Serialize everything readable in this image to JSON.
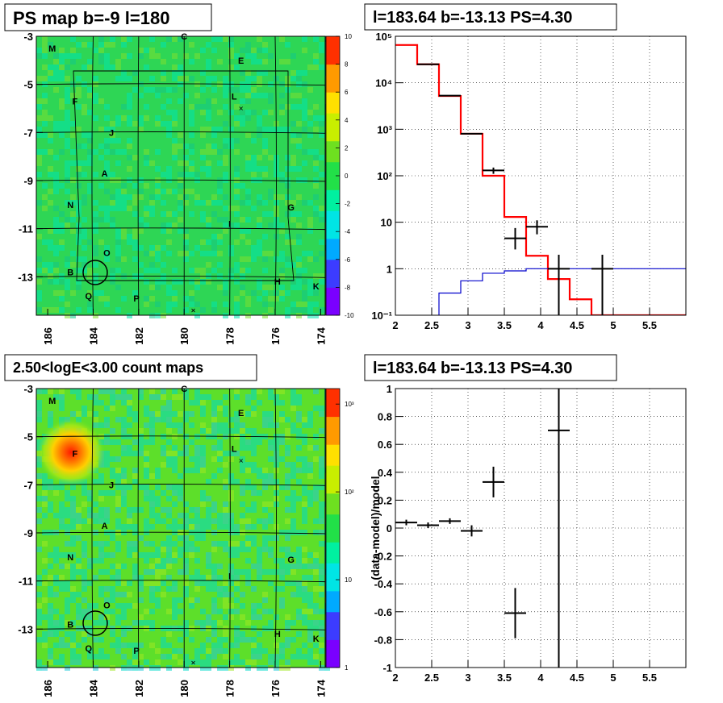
{
  "panels": {
    "ps_map": {
      "title": "PS map b=-9 l=180",
      "x_ticks": [
        "186",
        "184",
        "182",
        "180",
        "178",
        "176",
        "174"
      ],
      "y_ticks": [
        "-3",
        "-5",
        "-7",
        "-9",
        "-11",
        "-13"
      ],
      "colorbar_ticks": [
        "10",
        "8",
        "6",
        "4",
        "2",
        "0",
        "-2",
        "-4",
        "-6",
        "-8",
        "-10"
      ],
      "source_labels": [
        "M",
        "C",
        "E",
        "F",
        "L",
        "J",
        "A",
        "N",
        "G",
        "I",
        "O",
        "B",
        "H",
        "K",
        "Q",
        "P"
      ]
    },
    "count_map": {
      "title": "2.50<logE<3.00 count maps",
      "x_ticks": [
        "186",
        "184",
        "182",
        "180",
        "178",
        "176",
        "174"
      ],
      "y_ticks": [
        "-3",
        "-5",
        "-7",
        "-9",
        "-11",
        "-13"
      ],
      "colorbar_ticks": [
        "10³",
        "10²",
        "10",
        "1"
      ],
      "source_labels": [
        "M",
        "C",
        "E",
        "F",
        "L",
        "J",
        "A",
        "N",
        "G",
        "I",
        "O",
        "B",
        "H",
        "K",
        "Q",
        "P"
      ]
    },
    "spectrum": {
      "title": "l=183.64 b=-13.13 PS=4.30",
      "x_ticks": [
        "2",
        "2.5",
        "3",
        "3.5",
        "4",
        "4.5",
        "5",
        "5.5"
      ],
      "y_ticks": [
        "10⁵",
        "10⁴",
        "10³",
        "10²",
        "10",
        "1",
        "10⁻¹"
      ]
    },
    "residual": {
      "title": "l=183.64 b=-13.13 PS=4.30",
      "ylabel": "(data-model)/model",
      "x_ticks": [
        "2",
        "2.5",
        "3",
        "3.5",
        "4",
        "4.5",
        "5",
        "5.5"
      ],
      "y_ticks": [
        "1",
        "0.8",
        "0.6",
        "0.4",
        "0.2",
        "0",
        "-0.2",
        "-0.4",
        "-0.6",
        "-0.8",
        "-1"
      ]
    }
  },
  "chart_data": [
    {
      "type": "heatmap",
      "title": "PS map b=-9 l=180",
      "x_range": [
        186.5,
        173.8
      ],
      "y_range": [
        -14.6,
        -3
      ],
      "z_range": [
        -10,
        10
      ],
      "colormap": [
        "#7a00ff",
        "#3c3cff",
        "#00aaff",
        "#00e5e5",
        "#00f0a0",
        "#22e048",
        "#6ee020",
        "#c8ee00",
        "#ffe000",
        "#ff9a00",
        "#ff3000"
      ],
      "circle": {
        "l": 183.64,
        "b": -13.13
      },
      "crosses": [
        {
          "l": 177.5,
          "b": -6.0
        },
        {
          "l": 179.6,
          "b": -14.4
        }
      ],
      "sources": [
        {
          "name": "M",
          "l": 185.8,
          "b": -3.5
        },
        {
          "name": "C",
          "l": 180.0,
          "b": -3.0
        },
        {
          "name": "E",
          "l": 177.5,
          "b": -4.0
        },
        {
          "name": "F",
          "l": 184.8,
          "b": -5.7
        },
        {
          "name": "L",
          "l": 177.8,
          "b": -5.5
        },
        {
          "name": "J",
          "l": 183.2,
          "b": -7.0
        },
        {
          "name": "A",
          "l": 183.5,
          "b": -8.7
        },
        {
          "name": "N",
          "l": 185.0,
          "b": -10.0
        },
        {
          "name": "G",
          "l": 175.3,
          "b": -10.1
        },
        {
          "name": "I",
          "l": 178.0,
          "b": -10.8
        },
        {
          "name": "O",
          "l": 183.4,
          "b": -12.0
        },
        {
          "name": "B",
          "l": 185.0,
          "b": -12.8
        },
        {
          "name": "H",
          "l": 175.9,
          "b": -13.2
        },
        {
          "name": "K",
          "l": 174.2,
          "b": -13.4
        },
        {
          "name": "Q",
          "l": 184.2,
          "b": -13.8
        },
        {
          "name": "P",
          "l": 182.1,
          "b": -13.9
        }
      ]
    },
    {
      "type": "heatmap",
      "title": "2.50<logE<3.00 count maps",
      "x_range": [
        186.5,
        173.8
      ],
      "y_range": [
        -14.6,
        -3
      ],
      "z_range": [
        1,
        1500
      ],
      "z_scale": "log",
      "colormap": [
        "#7a00ff",
        "#3c3cff",
        "#00aaff",
        "#00e5e5",
        "#00f0a0",
        "#22e048",
        "#6ee020",
        "#c8ee00",
        "#ffe000",
        "#ff9a00",
        "#ff3000"
      ],
      "hotspot": {
        "l": 184.8,
        "b": -5.7
      },
      "circle": {
        "l": 183.64,
        "b": -13.13
      },
      "crosses": [
        {
          "l": 177.5,
          "b": -6.0
        },
        {
          "l": 179.6,
          "b": -14.4
        }
      ]
    },
    {
      "type": "line",
      "title": "l=183.64 b=-13.13 PS=4.30",
      "xlim": [
        2,
        6
      ],
      "ylim": [
        0.1,
        100000
      ],
      "y_scale": "log",
      "grid": true,
      "series": [
        {
          "color": "#ff0000",
          "style": "step",
          "edges": [
            2,
            2.3,
            2.6,
            2.9,
            3.2,
            3.5,
            3.8,
            4.1,
            4.4,
            4.7,
            5.0,
            6.0
          ],
          "values": [
            65000,
            25000,
            5200,
            800,
            100,
            13,
            1.9,
            0.6,
            0.22,
            0.1,
            0.1
          ]
        },
        {
          "color": "#0000cc",
          "style": "step",
          "edges": [
            2.6,
            2.9,
            3.2,
            3.5,
            3.8,
            4.1,
            4.4,
            4.7,
            5.0,
            6.0
          ],
          "values": [
            0.3,
            0.55,
            0.8,
            0.9,
            1.0,
            1.0,
            1.0,
            1.0,
            1.0
          ]
        },
        {
          "color": "#000000",
          "style": "errorbars",
          "points": [
            {
              "x": 2.45,
              "y": 25000,
              "xe": 0.15,
              "ylo": 25000,
              "yhi": 25000
            },
            {
              "x": 2.75,
              "y": 5300,
              "xe": 0.15,
              "ylo": 5300,
              "yhi": 5300
            },
            {
              "x": 3.05,
              "y": 800,
              "xe": 0.15,
              "ylo": 800,
              "yhi": 800
            },
            {
              "x": 3.35,
              "y": 130,
              "xe": 0.15,
              "ylo": 110,
              "yhi": 150
            },
            {
              "x": 3.65,
              "y": 4.5,
              "xe": 0.15,
              "ylo": 2.6,
              "yhi": 7.5
            },
            {
              "x": 3.95,
              "y": 8,
              "xe": 0.15,
              "ylo": 5.5,
              "yhi": 11
            },
            {
              "x": 4.25,
              "y": 1.0,
              "xe": 0.15,
              "ylo": 0.1,
              "yhi": 2.0
            },
            {
              "x": 4.85,
              "y": 1.0,
              "xe": 0.15,
              "ylo": 0.1,
              "yhi": 2.0
            }
          ]
        }
      ]
    },
    {
      "type": "scatter",
      "title": "l=183.64 b=-13.13 PS=4.30",
      "ylabel": "(data-model)/model",
      "xlim": [
        2,
        6
      ],
      "ylim": [
        -1,
        1
      ],
      "grid": true,
      "points": [
        {
          "x": 2.15,
          "y": 0.04,
          "xe": 0.15,
          "ye": 0.02
        },
        {
          "x": 2.45,
          "y": 0.02,
          "xe": 0.15,
          "ye": 0.02
        },
        {
          "x": 2.75,
          "y": 0.05,
          "xe": 0.15,
          "ye": 0.02
        },
        {
          "x": 3.05,
          "y": -0.02,
          "xe": 0.15,
          "ye": 0.04
        },
        {
          "x": 3.35,
          "y": 0.33,
          "xe": 0.15,
          "ye": 0.11
        },
        {
          "x": 3.65,
          "y": -0.61,
          "xe": 0.15,
          "ye": 0.18
        },
        {
          "x": 4.25,
          "y": 0.7,
          "xe": 0.15,
          "ye": 2.0
        }
      ]
    }
  ]
}
